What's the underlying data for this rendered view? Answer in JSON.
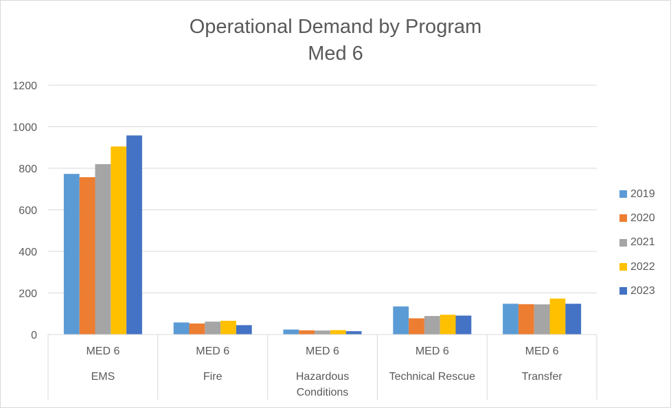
{
  "chart_data": {
    "type": "bar",
    "title": "Operational Demand by Program",
    "subtitle": "Med 6",
    "xlabel": "",
    "ylabel": "",
    "ylim": [
      0,
      1200
    ],
    "yticks": [
      0,
      200,
      400,
      600,
      800,
      1000,
      1200
    ],
    "grid": true,
    "legend_position": "right",
    "categories": [
      {
        "sub": "MED 6",
        "label": "EMS"
      },
      {
        "sub": "MED 6",
        "label": "Fire"
      },
      {
        "sub": "MED 6",
        "label": "Hazardous Conditions"
      },
      {
        "sub": "MED 6",
        "label": "Technical Rescue"
      },
      {
        "sub": "MED 6",
        "label": "Transfer"
      }
    ],
    "series": [
      {
        "name": "2019",
        "color": "#5b9bd5",
        "values": [
          773,
          58,
          24,
          135,
          148
        ]
      },
      {
        "name": "2020",
        "color": "#ed7d31",
        "values": [
          757,
          53,
          20,
          78,
          146
        ]
      },
      {
        "name": "2021",
        "color": "#a5a5a5",
        "values": [
          820,
          62,
          19,
          89,
          145
        ]
      },
      {
        "name": "2022",
        "color": "#ffc000",
        "values": [
          905,
          66,
          21,
          95,
          173
        ]
      },
      {
        "name": "2023",
        "color": "#4472c4",
        "values": [
          958,
          45,
          16,
          91,
          148
        ]
      }
    ]
  }
}
